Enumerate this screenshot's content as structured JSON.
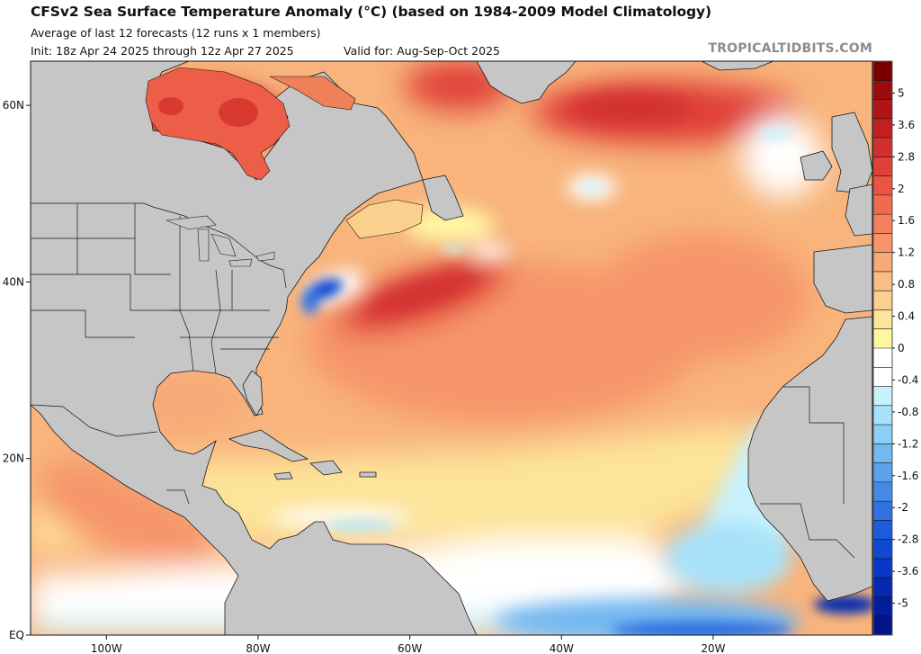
{
  "header": {
    "title": "CFSv2 Sea Surface Temperature Anomaly (°C) (based on 1984-2009 Model Climatology)",
    "subtitle": "Average of last 12 forecasts (12 runs x 1 members)",
    "init": "Init: 18z Apr 24 2025 through 12z Apr 27 2025",
    "valid": "Valid for: Aug-Sep-Oct 2025",
    "brand": "TROPICALTIDBITS.COM"
  },
  "map": {
    "variable": "Sea Surface Temperature Anomaly",
    "units": "°C",
    "region": "North Atlantic",
    "lon_range": [
      -110,
      1
    ],
    "lat_range": [
      0,
      65
    ],
    "land_color": "#c6c6c6",
    "lon_ticks": [
      {
        "value": -100,
        "label": "100W"
      },
      {
        "value": -80,
        "label": "80W"
      },
      {
        "value": -60,
        "label": "60W"
      },
      {
        "value": -40,
        "label": "40W"
      },
      {
        "value": -20,
        "label": "20W"
      }
    ],
    "lat_ticks": [
      {
        "value": 60,
        "label": "60N"
      },
      {
        "value": 40,
        "label": "40N"
      },
      {
        "value": 20,
        "label": "20N"
      },
      {
        "value": 0,
        "label": "EQ"
      }
    ],
    "features": [
      {
        "name": "hudson-bay-warm",
        "lon": -82,
        "lat": 59,
        "anomaly": 2.0
      },
      {
        "name": "gulf-stream-warm",
        "lon": -63,
        "lat": 38,
        "anomaly": 2.2
      },
      {
        "name": "subpolar-gyre-warm",
        "lon": -35,
        "lat": 60,
        "anomaly": 2.2
      },
      {
        "name": "mid-atlantic-bight-cold",
        "lon": -71,
        "lat": 39,
        "anomaly": -2.0
      },
      {
        "name": "west-africa-cold-tongue",
        "lon": -18,
        "lat": 3,
        "anomaly": -1.6
      },
      {
        "name": "gulf-of-guinea-cold",
        "lon": -5,
        "lat": 3,
        "anomaly": -2.8
      },
      {
        "name": "caribbean-cold-strip",
        "lon": -70,
        "lat": 12,
        "anomaly": -0.4
      },
      {
        "name": "west-of-ireland-neutral",
        "lon": -17,
        "lat": 53,
        "anomaly": -0.2
      },
      {
        "name": "open-atlantic-warm",
        "lon": -45,
        "lat": 30,
        "anomaly": 1.2
      }
    ]
  },
  "colorbar": {
    "labels": [
      "5",
      "3.6",
      "2.8",
      "2",
      "1.6",
      "1.2",
      "0.8",
      "0.4",
      "0",
      "-0.4",
      "-0.8",
      "-1.2",
      "-1.6",
      "-2",
      "-2.8",
      "-3.6",
      "-5"
    ],
    "colors": [
      "#7a0000",
      "#9a0b0b",
      "#b01414",
      "#c21f1f",
      "#d23030",
      "#e04138",
      "#ea5442",
      "#f06a4e",
      "#f4805c",
      "#f6956a",
      "#f8a978",
      "#f9bd86",
      "#fbd08f",
      "#fde49a",
      "#fff6a2",
      "#ffffff",
      "#ffffff",
      "#c7f2fd",
      "#a8e2fa",
      "#8ccff6",
      "#74b8f1",
      "#5ea1ec",
      "#4689e6",
      "#3072e0",
      "#1c5cdb",
      "#0f49d2",
      "#0838c4",
      "#0529b0",
      "#041d9c",
      "#031488"
    ]
  }
}
